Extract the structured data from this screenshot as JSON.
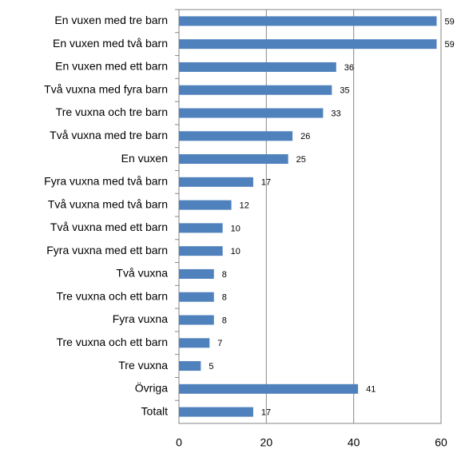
{
  "chart_data": {
    "type": "barh",
    "categories": [
      "En vuxen med tre barn",
      "En vuxen med två barn",
      "En vuxen med ett barn",
      "Två vuxna med fyra barn",
      "Tre vuxna och tre barn",
      "Två vuxna med tre barn",
      "En vuxen",
      "Fyra vuxna med två barn",
      "Två vuxna med två barn",
      "Två vuxna med ett barn",
      "Fyra vuxna med ett barn",
      "Två vuxna",
      "Tre vuxna och ett barn",
      "Fyra vuxna",
      "Tre vuxna och ett barn",
      "Tre vuxna",
      "Övriga",
      "Totalt"
    ],
    "values": [
      59,
      59,
      36,
      35,
      33,
      26,
      25,
      17,
      12,
      10,
      10,
      8,
      8,
      8,
      7,
      5,
      41,
      17
    ],
    "color": "#4f81bd",
    "xlim": [
      0,
      60
    ],
    "xticks": [
      0,
      20,
      40,
      60
    ],
    "grid": true
  }
}
